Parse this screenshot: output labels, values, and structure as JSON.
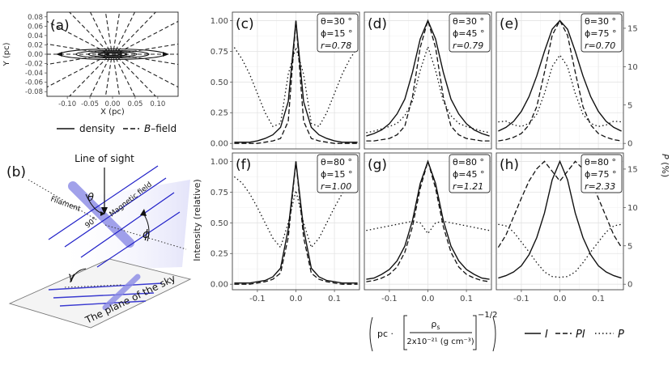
{
  "figure": {
    "panel_labels": [
      "(a)",
      "(b)"
    ]
  },
  "panel_a": {
    "xlabel": "X (pc)",
    "ylabel": "Y (pc)",
    "xticks": [
      "-0.10",
      "-0.05",
      "0.00",
      "0.05",
      "0.10"
    ],
    "yticks": [
      "0.08",
      "0.06",
      "0.04",
      "0.02",
      "0.00",
      "-0.02",
      "-0.04",
      "-0.06",
      "-0.08"
    ],
    "legend": {
      "density": "density",
      "bfield_italic": "B",
      "bfield_rest": "–field"
    }
  },
  "panel_b": {
    "line_of_sight": "Line of sight",
    "theta": "θ",
    "phi": "ϕ",
    "gamma": "γ",
    "filament": "Filament",
    "magnetic_field": "Magnetic field",
    "angle_90": "90°",
    "plane": "The plane of the sky"
  },
  "axes": {
    "ylabel_left": "Intensity (relative)",
    "ylabel_right_italic": "P",
    "ylabel_right_rest": "(%)",
    "left_ticks": [
      "0.00",
      "0.25",
      "0.50",
      "0.75",
      "1.00"
    ],
    "right_ticks": [
      "0",
      "5",
      "10",
      "15"
    ],
    "x_ticks": [
      "-0.1",
      "0.0",
      "0.1"
    ],
    "xlabel": {
      "prefix": "pc ·",
      "numerator": "ρ",
      "numerator_sub": "s",
      "denominator": "2x10⁻²¹ (g cm⁻³)",
      "exponent": "−1/2"
    }
  },
  "legend": {
    "I": "I",
    "PI": "PI",
    "P": "P"
  },
  "chart_data": [
    {
      "type": "line",
      "panel": "(c)",
      "theta": "θ=30 °",
      "phi": "ϕ=15 °",
      "r": "r=0.78"
    },
    {
      "type": "line",
      "panel": "(d)",
      "theta": "θ=30 °",
      "phi": "ϕ=45 °",
      "r": "r=0.79"
    },
    {
      "type": "line",
      "panel": "(e)",
      "theta": "θ=30 °",
      "phi": "ϕ=75 °",
      "r": "r=0.70"
    },
    {
      "type": "line",
      "panel": "(f)",
      "theta": "θ=80 °",
      "phi": "ϕ=15 °",
      "r": "r=1.00"
    },
    {
      "type": "line",
      "panel": "(g)",
      "theta": "θ=80 °",
      "phi": "ϕ=45 °",
      "r": "r=1.21"
    },
    {
      "type": "line",
      "panel": "(h)",
      "theta": "θ=80 °",
      "phi": "ϕ=75 °",
      "r": "r=2.33"
    }
  ],
  "curves": {
    "x": [
      -0.16,
      -0.14,
      -0.12,
      -0.1,
      -0.08,
      -0.06,
      -0.04,
      -0.02,
      0.0,
      0.02,
      0.04,
      0.06,
      0.08,
      0.1,
      0.12,
      0.14,
      0.16
    ],
    "c": {
      "I": [
        0.01,
        0.01,
        0.01,
        0.02,
        0.04,
        0.07,
        0.13,
        0.34,
        1.0,
        0.34,
        0.13,
        0.07,
        0.04,
        0.02,
        0.01,
        0.01,
        0.01
      ],
      "PI": [
        0.0,
        0.0,
        0.0,
        0.0,
        0.01,
        0.02,
        0.04,
        0.18,
        1.0,
        0.18,
        0.04,
        0.02,
        0.01,
        0.0,
        0.0,
        0.0,
        0.0
      ],
      "P": [
        12.5,
        11.0,
        9.0,
        6.5,
        4.0,
        2.2,
        2.6,
        9.0,
        12.5,
        9.0,
        2.6,
        2.2,
        4.0,
        6.5,
        9.0,
        11.0,
        12.5
      ]
    },
    "d": {
      "I": [
        0.06,
        0.08,
        0.11,
        0.16,
        0.24,
        0.36,
        0.58,
        0.85,
        1.0,
        0.85,
        0.58,
        0.36,
        0.24,
        0.16,
        0.11,
        0.08,
        0.06
      ],
      "PI": [
        0.02,
        0.02,
        0.03,
        0.04,
        0.07,
        0.14,
        0.38,
        0.78,
        1.0,
        0.78,
        0.38,
        0.14,
        0.07,
        0.04,
        0.03,
        0.02,
        0.02
      ],
      "P": [
        1.4,
        1.6,
        1.9,
        2.2,
        2.6,
        3.6,
        5.5,
        9.5,
        12.6,
        9.5,
        5.5,
        3.6,
        2.6,
        2.2,
        1.9,
        1.6,
        1.4
      ]
    },
    "e": {
      "I": [
        0.1,
        0.13,
        0.18,
        0.26,
        0.38,
        0.55,
        0.75,
        0.93,
        1.0,
        0.93,
        0.75,
        0.55,
        0.38,
        0.26,
        0.18,
        0.13,
        0.1
      ],
      "PI": [
        0.02,
        0.03,
        0.05,
        0.08,
        0.15,
        0.3,
        0.58,
        0.88,
        1.0,
        0.88,
        0.58,
        0.3,
        0.15,
        0.08,
        0.05,
        0.03,
        0.02
      ],
      "P": [
        2.8,
        2.9,
        2.4,
        2.2,
        2.6,
        3.8,
        6.5,
        10.0,
        11.5,
        10.0,
        6.5,
        3.8,
        2.6,
        2.2,
        2.4,
        2.9,
        2.8
      ]
    },
    "f": {
      "I": [
        0.01,
        0.01,
        0.01,
        0.02,
        0.03,
        0.06,
        0.13,
        0.45,
        1.0,
        0.45,
        0.13,
        0.06,
        0.03,
        0.02,
        0.01,
        0.01,
        0.01
      ],
      "PI": [
        0.0,
        0.0,
        0.0,
        0.01,
        0.02,
        0.04,
        0.09,
        0.38,
        1.0,
        0.38,
        0.09,
        0.04,
        0.02,
        0.01,
        0.0,
        0.0,
        0.0
      ],
      "P": [
        14.0,
        13.2,
        11.8,
        10.0,
        8.0,
        6.0,
        4.8,
        8.0,
        12.2,
        8.0,
        4.8,
        6.0,
        8.0,
        10.0,
        11.8,
        13.2,
        14.0
      ]
    },
    "g": {
      "I": [
        0.04,
        0.05,
        0.08,
        0.12,
        0.19,
        0.31,
        0.52,
        0.82,
        1.0,
        0.82,
        0.52,
        0.31,
        0.19,
        0.12,
        0.08,
        0.05,
        0.04
      ],
      "PI": [
        0.02,
        0.03,
        0.05,
        0.08,
        0.14,
        0.26,
        0.47,
        0.78,
        1.0,
        0.78,
        0.47,
        0.26,
        0.14,
        0.08,
        0.05,
        0.03,
        0.02
      ],
      "P": [
        7.0,
        7.2,
        7.4,
        7.6,
        7.8,
        8.0,
        8.2,
        8.0,
        6.6,
        8.0,
        8.2,
        8.0,
        7.8,
        7.6,
        7.4,
        7.2,
        7.0
      ]
    },
    "h": {
      "I": [
        0.05,
        0.07,
        0.1,
        0.15,
        0.24,
        0.38,
        0.58,
        0.85,
        1.0,
        0.85,
        0.58,
        0.38,
        0.24,
        0.15,
        0.1,
        0.07,
        0.05
      ],
      "PI": [
        0.3,
        0.4,
        0.55,
        0.7,
        0.84,
        0.94,
        1.0,
        0.92,
        0.84,
        0.92,
        1.0,
        0.94,
        0.84,
        0.7,
        0.55,
        0.4,
        0.3
      ],
      "P": [
        7.8,
        7.6,
        6.8,
        5.5,
        4.2,
        2.8,
        1.6,
        1.0,
        0.9,
        1.0,
        1.6,
        2.8,
        4.2,
        5.5,
        6.8,
        7.6,
        7.8
      ]
    }
  }
}
